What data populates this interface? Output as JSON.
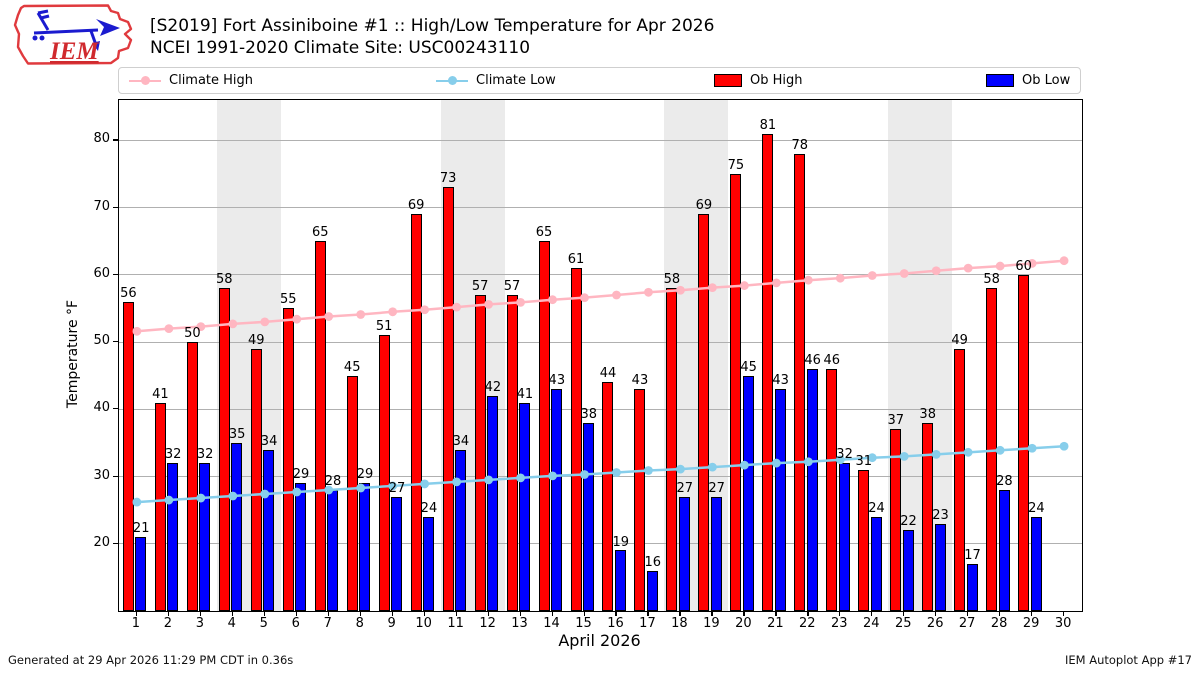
{
  "header": {
    "logo_text": "IEM",
    "title_line1": "[S2019] Fort Assiniboine #1 :: High/Low Temperature for Apr 2026",
    "title_line2": "NCEI 1991-2020 Climate Site: USC00243110"
  },
  "legend": {
    "items": [
      {
        "label": "Climate High",
        "swatch": "line-marker",
        "color": "#ffb6c1"
      },
      {
        "label": "Climate Low",
        "swatch": "line-marker",
        "color": "#87ceeb"
      },
      {
        "label": "Ob High",
        "swatch": "rect",
        "color": "#ff0000"
      },
      {
        "label": "Ob Low",
        "swatch": "rect",
        "color": "#0000ff"
      }
    ]
  },
  "axes": {
    "xlabel": "April 2026",
    "ylabel": "Temperature °F"
  },
  "chart_data": {
    "type": "bar",
    "title": "[S2019] Fort Assiniboine #1 :: High/Low Temperature for Apr 2026",
    "subtitle": "NCEI 1991-2020 Climate Site: USC00243110",
    "xlabel": "April 2026",
    "ylabel": "Temperature °F",
    "x": [
      1,
      2,
      3,
      4,
      5,
      6,
      7,
      8,
      9,
      10,
      11,
      12,
      13,
      14,
      15,
      16,
      17,
      18,
      19,
      20,
      21,
      22,
      23,
      24,
      25,
      26,
      27,
      28,
      29,
      30
    ],
    "yticks": [
      20,
      30,
      40,
      50,
      60,
      70,
      80
    ],
    "ylim": [
      10,
      86
    ],
    "xlim": [
      0.44,
      30.56
    ],
    "grid": true,
    "legend_position": "top",
    "weekend_bands": [
      [
        3.5,
        5.5
      ],
      [
        10.5,
        12.5
      ],
      [
        17.5,
        19.5
      ],
      [
        24.5,
        26.5
      ]
    ],
    "bar_value_labels": true,
    "series": [
      {
        "name": "Climate High",
        "type": "line",
        "color": "#ffb6c1",
        "values": [
          51.6,
          52.0,
          52.3,
          52.7,
          53.0,
          53.4,
          53.8,
          54.1,
          54.5,
          54.8,
          55.2,
          55.6,
          55.9,
          56.3,
          56.6,
          57.0,
          57.4,
          57.7,
          58.1,
          58.4,
          58.8,
          59.2,
          59.5,
          59.9,
          60.2,
          60.6,
          61.0,
          61.3,
          61.7,
          62.1
        ]
      },
      {
        "name": "Climate Low",
        "type": "line",
        "color": "#87ceeb",
        "values": [
          26.2,
          26.5,
          26.8,
          27.1,
          27.4,
          27.7,
          28.0,
          28.3,
          28.6,
          28.9,
          29.2,
          29.5,
          29.8,
          30.1,
          30.3,
          30.6,
          30.9,
          31.1,
          31.4,
          31.7,
          32.0,
          32.2,
          32.5,
          32.8,
          33.0,
          33.3,
          33.6,
          33.9,
          34.2,
          34.5
        ]
      },
      {
        "name": "Ob High",
        "type": "bar",
        "color": "#ff0000",
        "values": [
          56,
          41,
          50,
          58,
          49,
          55,
          65,
          45,
          51,
          69,
          73,
          57,
          57,
          65,
          61,
          44,
          43,
          58,
          69,
          75,
          81,
          78,
          46,
          31,
          37,
          38,
          49,
          58,
          60,
          null
        ]
      },
      {
        "name": "Ob Low",
        "type": "bar",
        "color": "#0000ff",
        "values": [
          21,
          32,
          32,
          35,
          34,
          29,
          28,
          29,
          27,
          24,
          34,
          42,
          41,
          43,
          38,
          19,
          16,
          27,
          27,
          45,
          43,
          46,
          32,
          24,
          22,
          23,
          17,
          28,
          24,
          null
        ]
      }
    ]
  },
  "footer": {
    "left": "Generated at 29 Apr 2026 11:29 PM CDT in 0.36s",
    "right": "IEM Autoplot App #17"
  },
  "colors": {
    "band": "#ebebeb",
    "grid": "#b0b0b0",
    "spine": "#000000",
    "background": "#ffffff"
  }
}
